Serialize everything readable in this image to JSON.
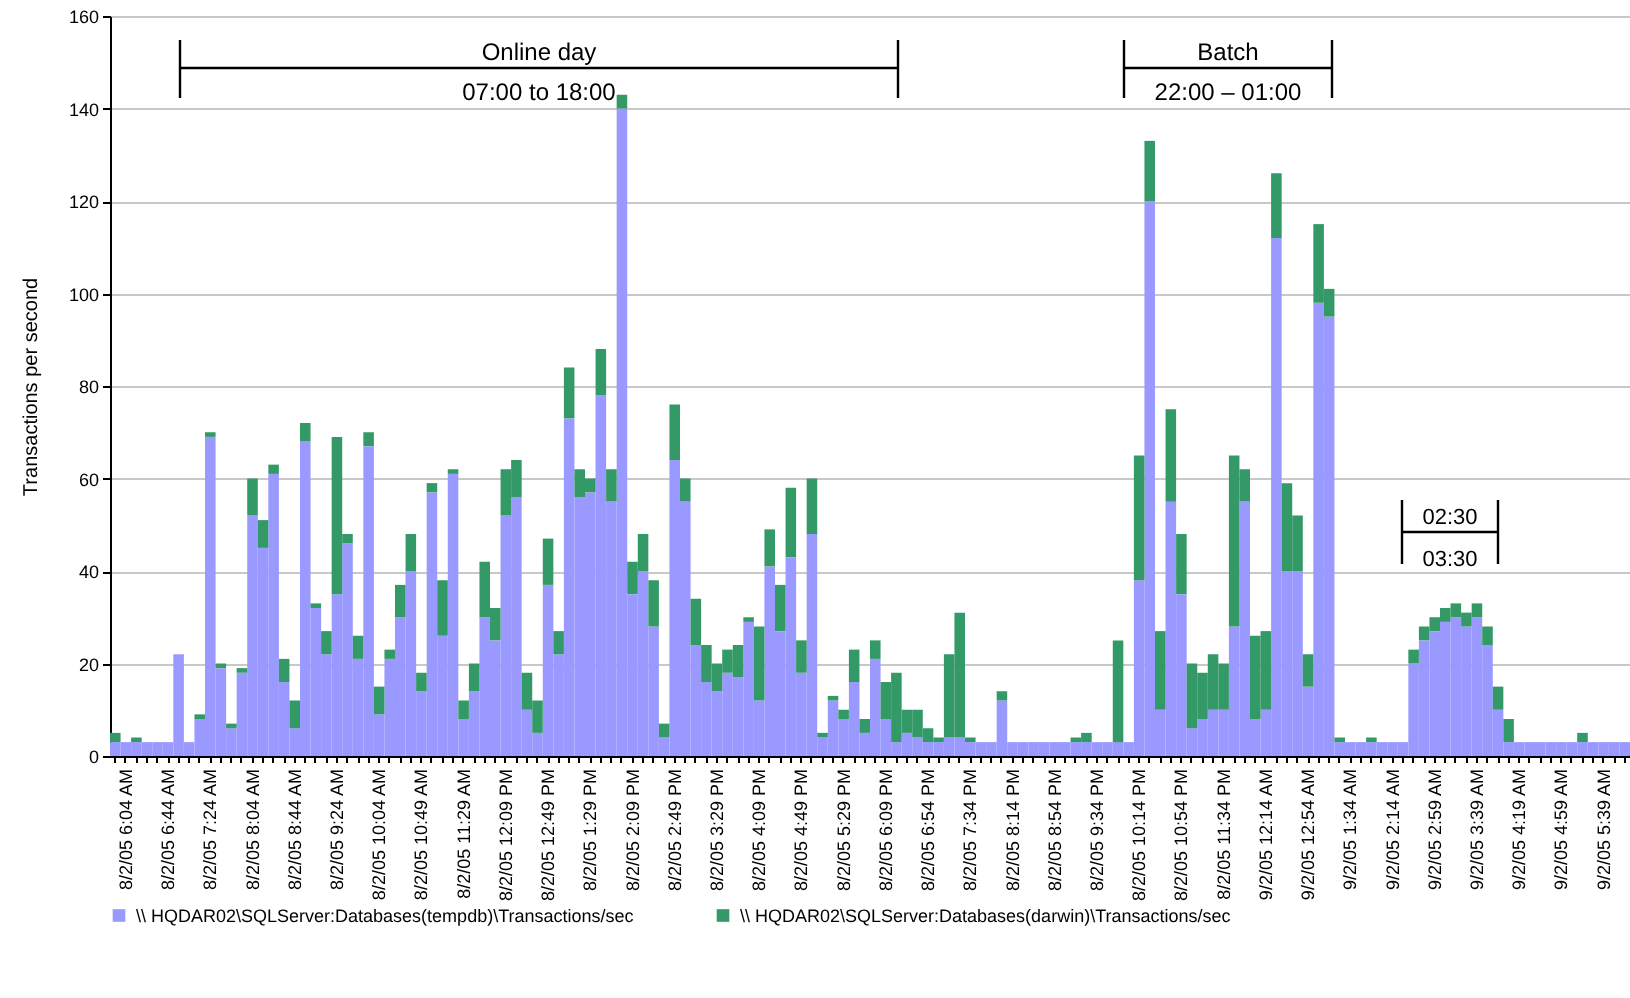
{
  "chart_data": {
    "type": "bar",
    "stacked": true,
    "ylabel": "Transactions per second",
    "ylim": [
      0,
      160
    ],
    "yticks": [
      0,
      20,
      40,
      60,
      80,
      100,
      120,
      140,
      160
    ],
    "grid": "y",
    "legend": "bottom",
    "annotations": [
      "Online day",
      "07:00 to 18:00",
      "Batch",
      "22:00 – 01:00",
      "02:30",
      "03:30"
    ],
    "categories": [
      null,
      "8/2/05 6:04 AM",
      null,
      null,
      null,
      "8/2/05 6:44 AM",
      null,
      null,
      null,
      "8/2/05 7:24 AM",
      null,
      null,
      null,
      "8/2/05 8:04 AM",
      null,
      null,
      null,
      "8/2/05 8:44 AM",
      null,
      null,
      null,
      "8/2/05 9:24 AM",
      null,
      null,
      null,
      "8/2/05 10:04 AM",
      null,
      null,
      null,
      "8/2/05 10:49 AM",
      null,
      null,
      null,
      "8/2/05 11:29 AM",
      null,
      null,
      null,
      "8/2/05 12:09 PM",
      null,
      null,
      null,
      "8/2/05 12:49 PM",
      null,
      null,
      null,
      "8/2/05 1:29 PM",
      null,
      null,
      null,
      "8/2/05 2:09 PM",
      null,
      null,
      null,
      "8/2/05 2:49 PM",
      null,
      null,
      null,
      "8/2/05 3:29 PM",
      null,
      null,
      null,
      "8/2/05 4:09 PM",
      null,
      null,
      null,
      "8/2/05 4:49 PM",
      null,
      null,
      null,
      "8/2/05 5:29 PM",
      null,
      null,
      null,
      "8/2/05 6:09 PM",
      null,
      null,
      null,
      "8/2/05 6:54 PM",
      null,
      null,
      null,
      "8/2/05 7:34 PM",
      null,
      null,
      null,
      "8/2/05 8:14 PM",
      null,
      null,
      null,
      "8/2/05 8:54 PM",
      null,
      null,
      null,
      "8/2/05 9:34 PM",
      null,
      null,
      null,
      "8/2/05 10:14 PM",
      null,
      null,
      null,
      "8/2/05 10:54 PM",
      null,
      null,
      null,
      "8/2/05 11:34 PM",
      null,
      null,
      null,
      "9/2/05 12:14 AM",
      null,
      null,
      null,
      "9/2/05 12:54 AM",
      null,
      null,
      null,
      "9/2/05 1:34 AM",
      null,
      null,
      null,
      "9/2/05 2:14 AM",
      null,
      null,
      null,
      "9/2/05 2:59 AM",
      null,
      null,
      null,
      "9/2/05 3:39 AM",
      null,
      null,
      null,
      "9/2/05 4:19 AM",
      null,
      null,
      null,
      "9/2/05 4:59 AM",
      null,
      null,
      null,
      "9/2/05 5:39 AM",
      null,
      null
    ],
    "series": [
      {
        "name": "\\\\ HQDAR02\\SQLServer:Databases(tempdb)\\Transactions/sec",
        "color": "#9999ff",
        "values": [
          3,
          3,
          3,
          3,
          3,
          3,
          22,
          3,
          8,
          69,
          19,
          6,
          18,
          52,
          45,
          61,
          16,
          6,
          68,
          32,
          22,
          35,
          46,
          21,
          67,
          9,
          21,
          30,
          40,
          14,
          57,
          26,
          61,
          8,
          14,
          30,
          25,
          52,
          56,
          10,
          5,
          37,
          22,
          73,
          56,
          57,
          78,
          55,
          140,
          35,
          40,
          28,
          4,
          64,
          55,
          24,
          16,
          14,
          18,
          17,
          29,
          12,
          41,
          27,
          43,
          18,
          48,
          4,
          12,
          8,
          16,
          5,
          21,
          8,
          3,
          5,
          4,
          3,
          3,
          4,
          4,
          3,
          3,
          3,
          12,
          3,
          3,
          3,
          3,
          3,
          3,
          3,
          3,
          3,
          3,
          3,
          3,
          38,
          120,
          10,
          55,
          35,
          6,
          8,
          10,
          10,
          28,
          55,
          8,
          10,
          112,
          40,
          40,
          15,
          98,
          95,
          3,
          3,
          3,
          3,
          3,
          3,
          3,
          20,
          25,
          27,
          29,
          30,
          28,
          30,
          24,
          10,
          3,
          3,
          3,
          3,
          3,
          3,
          3,
          3,
          3,
          3,
          3,
          3
        ]
      },
      {
        "name": "\\\\ HQDAR02\\SQLServer:Databases(darwin)\\Transactions/sec",
        "color": "#339966",
        "values": [
          2,
          0,
          1,
          0,
          0,
          0,
          0,
          0,
          1,
          1,
          1,
          1,
          1,
          8,
          6,
          2,
          5,
          6,
          4,
          1,
          5,
          34,
          2,
          5,
          3,
          6,
          2,
          7,
          8,
          4,
          2,
          12,
          1,
          4,
          6,
          12,
          7,
          10,
          8,
          8,
          7,
          10,
          5,
          11,
          6,
          3,
          10,
          7,
          3,
          7,
          8,
          10,
          3,
          12,
          5,
          10,
          8,
          6,
          5,
          7,
          1,
          16,
          8,
          10,
          15,
          7,
          12,
          1,
          1,
          2,
          7,
          3,
          4,
          8,
          15,
          5,
          6,
          3,
          1,
          18,
          27,
          1,
          0,
          0,
          2,
          0,
          0,
          0,
          0,
          0,
          0,
          1,
          2,
          0,
          0,
          22,
          0,
          27,
          13,
          17,
          20,
          13,
          14,
          10,
          12,
          10,
          37,
          7,
          18,
          17,
          14,
          19,
          12,
          7,
          17,
          6,
          1,
          0,
          0,
          1,
          0,
          0,
          0,
          3,
          3,
          3,
          3,
          3,
          3,
          3,
          4,
          5,
          5,
          0,
          0,
          0,
          0,
          0,
          0,
          2,
          0,
          0,
          0,
          0
        ]
      }
    ]
  }
}
